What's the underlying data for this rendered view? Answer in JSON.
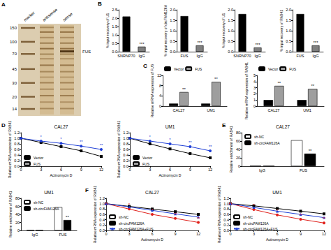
{
  "gel": {
    "panel": "A",
    "lanes": [
      "marker",
      "antisense",
      "sense"
    ],
    "size_markers": [
      150,
      100,
      70,
      45,
      30,
      20,
      14
    ],
    "band_label": "FUS"
  },
  "chart_data": [
    {
      "panel": "B",
      "type": "bar",
      "categories": [
        "SNRNP70",
        "IgG"
      ],
      "values": [
        2.1,
        0.3
      ],
      "colors": [
        "#000000",
        "#7f7f7f"
      ],
      "significance": [
        null,
        "***"
      ],
      "ylabel": "% input recovery of U1",
      "ylim": [
        0,
        2.5
      ],
      "yticks": [
        {
          "value": 0,
          "label": "0.0"
        },
        0.5,
        {
          "value": 1,
          "label": "1.0"
        },
        1.5,
        {
          "value": 2,
          "label": "2.0"
        },
        2.5
      ]
    },
    {
      "type": "bar",
      "categories": [
        "FUS",
        "IgG"
      ],
      "values": [
        1.7,
        0.3
      ],
      "colors": [
        "#000000",
        "#7f7f7f"
      ],
      "significance": [
        null,
        "***"
      ],
      "ylabel": "% input recovery of circFAM126A",
      "ylim": [
        0,
        2
      ],
      "yticks": [
        {
          "value": 0,
          "label": "0.0"
        },
        0.5,
        {
          "value": 1,
          "label": "1.0"
        },
        1.5,
        {
          "value": 2,
          "label": "2.0"
        }
      ]
    },
    {
      "type": "bar",
      "categories": [
        "SNRNP70",
        "IgG"
      ],
      "values": [
        1.8,
        0.2
      ],
      "colors": [
        "#000000",
        "#7f7f7f"
      ],
      "significance": [
        null,
        "***"
      ],
      "ylabel": "% input recovery of U1",
      "ylim": [
        0,
        2
      ],
      "yticks": [
        {
          "value": 0,
          "label": "0.0"
        },
        0.5,
        {
          "value": 1,
          "label": "1.0"
        },
        1.5,
        {
          "value": 2,
          "label": "2.0"
        }
      ]
    },
    {
      "type": "bar",
      "categories": [
        "FUS",
        "IgG"
      ],
      "values": [
        1.8,
        0.3
      ],
      "colors": [
        "#000000",
        "#7f7f7f"
      ],
      "significance": [
        null,
        "***"
      ],
      "ylabel": "% input recovery of RAB41",
      "ylim": [
        0,
        2
      ],
      "yticks": [
        {
          "value": 0,
          "label": "0.0"
        },
        0.5,
        {
          "value": 1,
          "label": "1.0"
        },
        1.5,
        {
          "value": 2,
          "label": "2.0"
        }
      ]
    },
    {
      "panel": "C",
      "type": "bar",
      "categories": [
        "CAL27",
        "UM1"
      ],
      "series": [
        {
          "name": "Vector",
          "color": "#000000",
          "values": [
            1,
            1
          ]
        },
        {
          "name": "FUS",
          "color": "#9e9e9e",
          "values": [
            5.5,
            9.5
          ],
          "significance": [
            "**",
            "**"
          ]
        }
      ],
      "ylabel": "Relative mRNA expression of FUS",
      "ylim": [
        0,
        12
      ],
      "yticks": [
        0,
        4,
        8,
        12
      ],
      "legend": "top"
    },
    {
      "type": "bar",
      "categories": [
        "CAL27",
        "UM1"
      ],
      "series": [
        {
          "name": "Vector",
          "color": "#000000",
          "values": [
            1,
            1
          ]
        },
        {
          "name": "FUS",
          "color": "#9e9e9e",
          "values": [
            3.3,
            2.8
          ],
          "significance": [
            "**",
            "**"
          ]
        }
      ],
      "ylabel": "Relative mRNA expression of RAB41",
      "ylim": [
        0,
        5
      ],
      "yticks": [
        0,
        1,
        2,
        3,
        4,
        5
      ],
      "legend": "top"
    },
    {
      "panel": "D",
      "type": "line",
      "title": "CAL27",
      "x": [
        0,
        3,
        6,
        9,
        12
      ],
      "series": [
        {
          "name": "Vector",
          "color": "#000000",
          "marker": "square",
          "values": [
            1,
            0.85,
            0.7,
            0.55,
            0.35
          ]
        },
        {
          "name": "FUS",
          "color": "#1f3fd6",
          "marker": "circle",
          "values": [
            1,
            0.9,
            0.82,
            0.72,
            0.6
          ],
          "significance": [
            null,
            "*",
            "*",
            "**",
            "**"
          ]
        }
      ],
      "xlabel": "Actinomycin D",
      "ylabel": "Relative mRNA expression of RAB41",
      "xlim": [
        0,
        12
      ],
      "xticks": [
        0,
        3,
        6,
        9,
        12
      ],
      "ylim": [
        0,
        1.2
      ],
      "yticks": [
        {
          "value": 0,
          "label": "0.0"
        },
        0.2,
        0.4,
        0.6,
        0.8,
        {
          "value": 1,
          "label": "1.0"
        },
        1.2
      ],
      "legend": "bottom-left"
    },
    {
      "type": "line",
      "title": "UM1",
      "x": [
        0,
        3,
        6,
        9,
        12
      ],
      "series": [
        {
          "name": "Vector",
          "color": "#000000",
          "marker": "square",
          "values": [
            1,
            0.8,
            0.62,
            0.45,
            0.3
          ]
        },
        {
          "name": "FUS",
          "color": "#1f3fd6",
          "marker": "circle",
          "values": [
            1,
            0.9,
            0.8,
            0.7,
            0.55
          ],
          "significance": [
            null,
            "*",
            "*",
            "**",
            "**"
          ]
        }
      ],
      "xlabel": "Actinomycin D",
      "ylabel": "Relative mRNA expression of RAB41",
      "xlim": [
        0,
        12
      ],
      "xticks": [
        0,
        3,
        6,
        9,
        12
      ],
      "ylim": [
        0,
        1.2
      ],
      "yticks": [
        {
          "value": 0,
          "label": "0.0"
        },
        0.2,
        0.4,
        0.6,
        0.8,
        {
          "value": 1,
          "label": "1.0"
        },
        1.2
      ],
      "legend": "bottom-left"
    },
    {
      "panel": "E",
      "type": "bar",
      "title": "CAL27",
      "categories": [
        "IgG",
        "FUS"
      ],
      "series": [
        {
          "name": "sh-NC",
          "color": "#ffffff",
          "values": [
            1,
            62
          ]
        },
        {
          "name": "sh-circFAM126A",
          "color": "#000000",
          "values": [
            1,
            30
          ],
          "significance": [
            null,
            "**"
          ]
        }
      ],
      "ylabel": "Relative enrichment of RAB41",
      "ylim": [
        0,
        80
      ],
      "yticks": [
        0,
        20,
        40,
        60,
        80
      ],
      "legend": "top-left"
    },
    {
      "type": "bar",
      "title": "UM1",
      "categories": [
        "IgG",
        "FUS"
      ],
      "series": [
        {
          "name": "sh-NC",
          "color": "#ffffff",
          "values": [
            1,
            58
          ]
        },
        {
          "name": "sh-circFAM126A",
          "color": "#000000",
          "values": [
            1,
            26
          ],
          "significance": [
            null,
            "**"
          ]
        }
      ],
      "ylabel": "Relative enrichment of RAB41",
      "ylim": [
        0,
        80
      ],
      "yticks": [
        0,
        20,
        40,
        60,
        80
      ],
      "legend": "top-left"
    },
    {
      "panel": "F",
      "type": "line",
      "title": "CAL27",
      "x": [
        0,
        3,
        6,
        9,
        12
      ],
      "series": [
        {
          "name": "sh-NC",
          "color": "#000000",
          "marker": "square",
          "values": [
            1,
            0.9,
            0.8,
            0.7,
            0.6
          ]
        },
        {
          "name": "sh-circFAM126A",
          "color": "#e0201b",
          "marker": "circle",
          "values": [
            1,
            0.8,
            0.6,
            0.45,
            0.3
          ],
          "significance": [
            null,
            "*",
            "*",
            "**",
            "**"
          ]
        },
        {
          "name": "sh-circFAM126A+FUS",
          "color": "#1f3fd6",
          "marker": "triangle",
          "values": [
            1,
            0.88,
            0.75,
            0.62,
            0.5
          ]
        }
      ],
      "xlabel": "Actinomycin D",
      "ylabel": "Relative mRNA expression of RAB41",
      "xlim": [
        0,
        12
      ],
      "xticks": [
        0,
        3,
        6,
        9,
        12
      ],
      "ylim": [
        0,
        1.2
      ],
      "yticks": [
        {
          "value": 0,
          "label": "0.0"
        },
        0.2,
        0.4,
        0.6,
        0.8,
        {
          "value": 1,
          "label": "1.0"
        },
        1.2
      ],
      "legend": "bottom-left"
    },
    {
      "type": "line",
      "title": "UM1",
      "x": [
        0,
        3,
        6,
        9,
        12
      ],
      "series": [
        {
          "name": "sh-NC",
          "color": "#000000",
          "marker": "square",
          "values": [
            1,
            0.92,
            0.82,
            0.72,
            0.62
          ]
        },
        {
          "name": "sh-circFAM126A",
          "color": "#e0201b",
          "marker": "circle",
          "values": [
            1,
            0.78,
            0.58,
            0.42,
            0.28
          ],
          "significance": [
            null,
            "*",
            "*",
            "**",
            "**"
          ]
        },
        {
          "name": "sh-circFAM126A+FUS",
          "color": "#1f3fd6",
          "marker": "triangle",
          "values": [
            1,
            0.86,
            0.72,
            0.6,
            0.48
          ]
        }
      ],
      "xlabel": "Actinomycin D",
      "ylabel": "Relative mRNA expression of RAB41",
      "xlim": [
        0,
        12
      ],
      "xticks": [
        0,
        3,
        6,
        9,
        12
      ],
      "ylim": [
        0,
        1.2
      ],
      "yticks": [
        {
          "value": 0,
          "label": "0.0"
        },
        0.2,
        0.4,
        0.6,
        0.8,
        {
          "value": 1,
          "label": "1.0"
        },
        1.2
      ],
      "legend": "bottom-left"
    }
  ]
}
